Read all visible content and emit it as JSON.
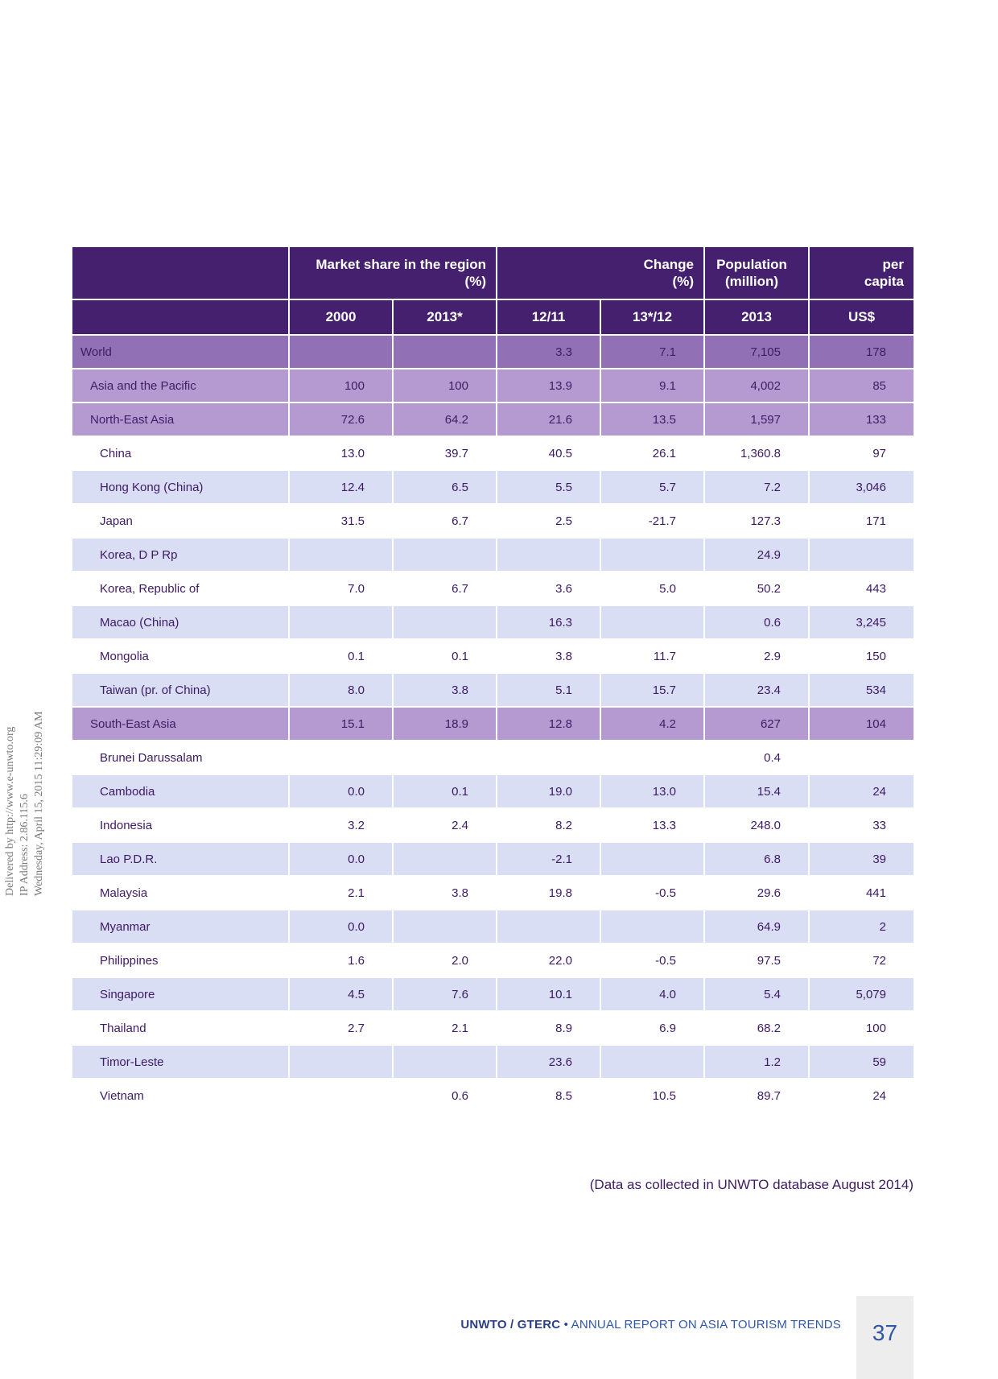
{
  "side_note": {
    "line1": "Delivered by http://www.e-unwto.org",
    "line2": "IP Address: 2.86.115.6",
    "line3": "Wednesday, April 15, 2015 11:29:09 AM"
  },
  "table": {
    "headers_top": {
      "market_share": "Market share in the region",
      "market_share_unit": "(%)",
      "change": "Change",
      "change_unit": "(%)",
      "population": "Population",
      "population_unit": "(million)",
      "per_capita": "per",
      "per_capita_unit": "capita"
    },
    "headers_sub": [
      "2000",
      "2013*",
      "12/11",
      "13*/12",
      "2013",
      "US$"
    ],
    "rows": [
      {
        "name": "World",
        "c": [
          "",
          "",
          "3.3",
          "7.1",
          "7,105",
          "178"
        ]
      },
      {
        "name": "Asia and the Pacific",
        "c": [
          "100",
          "100",
          "13.9",
          "9.1",
          "4,002",
          "85"
        ]
      },
      {
        "name": "North-East Asia",
        "c": [
          "72.6",
          "64.2",
          "21.6",
          "13.5",
          "1,597",
          "133"
        ]
      },
      {
        "name": "China",
        "c": [
          "13.0",
          "39.7",
          "40.5",
          "26.1",
          "1,360.8",
          "97"
        ]
      },
      {
        "name": "Hong Kong (China)",
        "c": [
          "12.4",
          "6.5",
          "5.5",
          "5.7",
          "7.2",
          "3,046"
        ]
      },
      {
        "name": "Japan",
        "c": [
          "31.5",
          "6.7",
          "2.5",
          "-21.7",
          "127.3",
          "171"
        ]
      },
      {
        "name": "Korea, D P Rp",
        "c": [
          "",
          "",
          "",
          "",
          "24.9",
          ""
        ]
      },
      {
        "name": "Korea, Republic of",
        "c": [
          "7.0",
          "6.7",
          "3.6",
          "5.0",
          "50.2",
          "443"
        ]
      },
      {
        "name": "Macao (China)",
        "c": [
          "",
          "",
          "16.3",
          "",
          "0.6",
          "3,245"
        ]
      },
      {
        "name": "Mongolia",
        "c": [
          "0.1",
          "0.1",
          "3.8",
          "11.7",
          "2.9",
          "150"
        ]
      },
      {
        "name": "Taiwan (pr. of China)",
        "c": [
          "8.0",
          "3.8",
          "5.1",
          "15.7",
          "23.4",
          "534"
        ]
      },
      {
        "name": "South-East Asia",
        "c": [
          "15.1",
          "18.9",
          "12.8",
          "4.2",
          "627",
          "104"
        ]
      },
      {
        "name": "Brunei Darussalam",
        "c": [
          "",
          "",
          "",
          "",
          "0.4",
          ""
        ]
      },
      {
        "name": "Cambodia",
        "c": [
          "0.0",
          "0.1",
          "19.0",
          "13.0",
          "15.4",
          "24"
        ]
      },
      {
        "name": "Indonesia",
        "c": [
          "3.2",
          "2.4",
          "8.2",
          "13.3",
          "248.0",
          "33"
        ]
      },
      {
        "name": "Lao P.D.R.",
        "c": [
          "0.0",
          "",
          "-2.1",
          "",
          "6.8",
          "39"
        ]
      },
      {
        "name": "Malaysia",
        "c": [
          "2.1",
          "3.8",
          "19.8",
          "-0.5",
          "29.6",
          "441"
        ]
      },
      {
        "name": "Myanmar",
        "c": [
          "0.0",
          "",
          "",
          "",
          "64.9",
          "2"
        ]
      },
      {
        "name": "Philippines",
        "c": [
          "1.6",
          "2.0",
          "22.0",
          "-0.5",
          "97.5",
          "72"
        ]
      },
      {
        "name": "Singapore",
        "c": [
          "4.5",
          "7.6",
          "10.1",
          "4.0",
          "5.4",
          "5,079"
        ]
      },
      {
        "name": "Thailand",
        "c": [
          "2.7",
          "2.1",
          "8.9",
          "6.9",
          "68.2",
          "100"
        ]
      },
      {
        "name": "Timor-Leste",
        "c": [
          "",
          "",
          "23.6",
          "",
          "1.2",
          "59"
        ]
      },
      {
        "name": "Vietnam",
        "c": [
          "",
          "0.6",
          "8.5",
          "10.5",
          "89.7",
          "24"
        ]
      }
    ]
  },
  "source_note": "(Data as collected in UNWTO database August 2014)",
  "footer": {
    "brand": "UNWTO / GTERC",
    "separator": " • ",
    "title": "ANNUAL REPORT ON ASIA TOURISM TRENDS",
    "page_number": "37"
  }
}
